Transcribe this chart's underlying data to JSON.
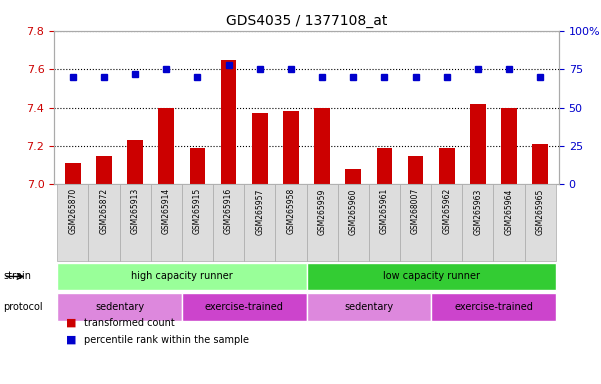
{
  "title": "GDS4035 / 1377108_at",
  "samples": [
    "GSM265870",
    "GSM265872",
    "GSM265913",
    "GSM265914",
    "GSM265915",
    "GSM265916",
    "GSM265957",
    "GSM265958",
    "GSM265959",
    "GSM265960",
    "GSM265961",
    "GSM268007",
    "GSM265962",
    "GSM265963",
    "GSM265964",
    "GSM265965"
  ],
  "transformed_counts": [
    7.11,
    7.15,
    7.23,
    7.4,
    7.19,
    7.65,
    7.37,
    7.38,
    7.4,
    7.08,
    7.19,
    7.15,
    7.19,
    7.42,
    7.4,
    7.21
  ],
  "percentile_ranks": [
    70,
    70,
    72,
    75,
    70,
    78,
    75,
    75,
    70,
    70,
    70,
    70,
    70,
    75,
    75,
    70
  ],
  "ylim_left": [
    7.0,
    7.8
  ],
  "ylim_right": [
    0,
    100
  ],
  "yticks_left": [
    7.0,
    7.2,
    7.4,
    7.6,
    7.8
  ],
  "yticks_right": [
    0,
    25,
    50,
    75,
    100
  ],
  "ytick_labels_right": [
    "0",
    "25",
    "50",
    "75",
    "100%"
  ],
  "bar_color": "#cc0000",
  "dot_color": "#0000cc",
  "grid_color": "#000000",
  "strain_labels": [
    {
      "label": "high capacity runner",
      "start": 0,
      "end": 8,
      "color": "#99ff99"
    },
    {
      "label": "low capacity runner",
      "start": 8,
      "end": 16,
      "color": "#33cc33"
    }
  ],
  "protocol_labels": [
    {
      "label": "sedentary",
      "start": 0,
      "end": 4,
      "color": "#dd88dd"
    },
    {
      "label": "exercise-trained",
      "start": 4,
      "end": 8,
      "color": "#cc44cc"
    },
    {
      "label": "sedentary",
      "start": 8,
      "end": 12,
      "color": "#dd88dd"
    },
    {
      "label": "exercise-trained",
      "start": 12,
      "end": 16,
      "color": "#cc44cc"
    }
  ],
  "legend_items": [
    {
      "label": "transformed count",
      "color": "#cc0000"
    },
    {
      "label": "percentile rank within the sample",
      "color": "#0000cc"
    }
  ],
  "strain_label": "strain",
  "protocol_label": "protocol",
  "axis_color_left": "#cc0000",
  "axis_color_right": "#0000cc",
  "background_color": "#ffffff",
  "plot_bg_color": "#ffffff",
  "tick_area_color": "#cccccc"
}
